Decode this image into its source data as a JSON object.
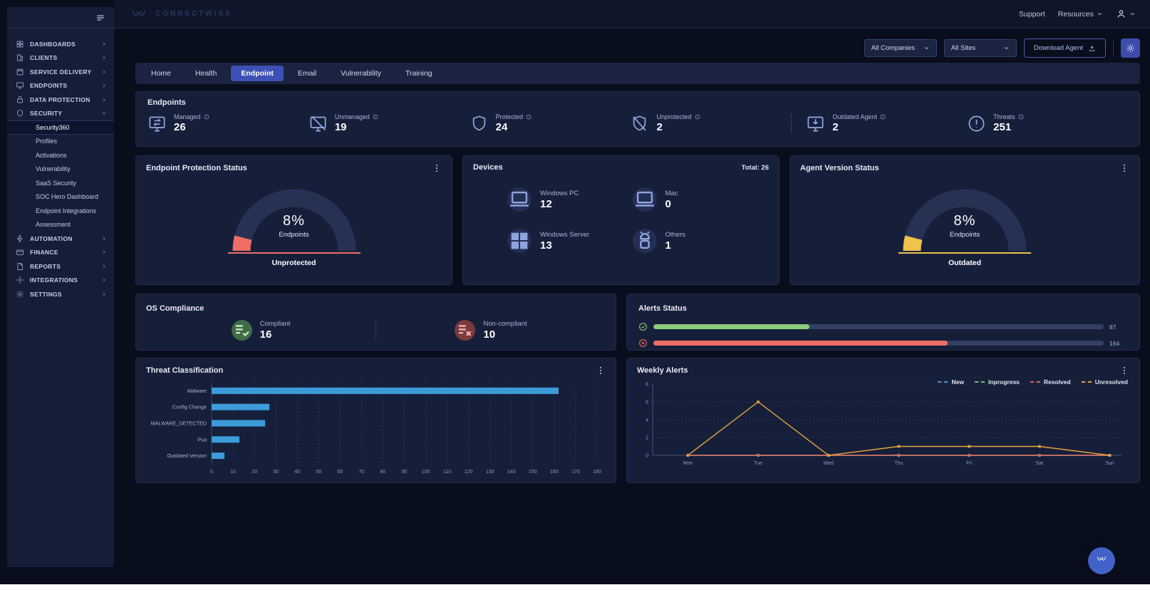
{
  "header": {
    "brand": "CONNECTWISE",
    "support_label": "Support",
    "resources_label": "Resources"
  },
  "filters": {
    "companies_label": "All Companies",
    "sites_label": "All Sites",
    "download_agent_label": "Download Agent"
  },
  "tabs": {
    "active": "Endpoint",
    "items": [
      "Home",
      "Health",
      "Endpoint",
      "Email",
      "Vulnerability",
      "Training"
    ]
  },
  "sidebar": {
    "items": [
      {
        "label": "DASHBOARDS",
        "icon": "dashboards-icon",
        "chevron": "right"
      },
      {
        "label": "CLIENTS",
        "icon": "clients-icon",
        "chevron": "right"
      },
      {
        "label": "SERVICE DELIVERY",
        "icon": "service-delivery-icon",
        "chevron": "right"
      },
      {
        "label": "ENDPOINTS",
        "icon": "endpoints-icon",
        "chevron": "right"
      },
      {
        "label": "DATA PROTECTION",
        "icon": "data-protection-icon",
        "chevron": "right"
      },
      {
        "label": "SECURITY",
        "icon": "security-icon",
        "chevron": "down",
        "expanded": true,
        "children": [
          {
            "label": "Security360",
            "active": true
          },
          {
            "label": "Profiles"
          },
          {
            "label": "Activations"
          },
          {
            "label": "Vulnerability"
          },
          {
            "label": "SaaS Security"
          },
          {
            "label": "SOC Hero Dashboard"
          },
          {
            "label": "Endpoint Integrations"
          },
          {
            "label": "Assessment"
          }
        ]
      },
      {
        "label": "AUTOMATION",
        "icon": "automation-icon",
        "chevron": "right"
      },
      {
        "label": "FINANCE",
        "icon": "finance-icon",
        "chevron": "right"
      },
      {
        "label": "REPORTS",
        "icon": "reports-icon",
        "chevron": "right"
      },
      {
        "label": "INTEGRATIONS",
        "icon": "integrations-icon",
        "chevron": "right"
      },
      {
        "label": "SETTINGS",
        "icon": "settings-icon",
        "chevron": "right"
      }
    ]
  },
  "endpoints_card": {
    "title": "Endpoints",
    "stats": [
      {
        "icon": "managed-endpoints-icon",
        "label": "Managed",
        "value": "26"
      },
      {
        "icon": "unmanaged-endpoints-icon",
        "label": "Unmanaged",
        "value": "19"
      },
      {
        "icon": "protected-shield-icon",
        "label": "Protected",
        "value": "24"
      },
      {
        "icon": "unprotected-shield-icon",
        "label": "Unprotected",
        "value": "2"
      },
      {
        "icon": "outdated-agent-icon",
        "label": "Outdated Agent",
        "value": "2",
        "divider_before": true
      },
      {
        "icon": "threats-icon",
        "label": "Threats",
        "value": "251"
      }
    ]
  },
  "cards": {
    "protection": {
      "title": "Endpoint Protection Status"
    },
    "devices": {
      "title": "Devices",
      "total_label": "Total: 26",
      "items": [
        {
          "icon": "windows-pc-icon",
          "label": "Windows PC",
          "value": "12"
        },
        {
          "icon": "mac-icon",
          "label": "Mac",
          "value": "0"
        },
        {
          "icon": "windows-server-icon",
          "label": "Windows Server",
          "value": "13"
        },
        {
          "icon": "others-icon",
          "label": "Others",
          "value": "1"
        }
      ]
    },
    "agent": {
      "title": "Agent Version Status"
    },
    "os_compliance": {
      "title": "OS Compliance",
      "items": [
        {
          "icon": "compliant-icon",
          "label": "Compliant",
          "value": "16",
          "badge_bg": "#3f6b48",
          "badge_fg": "#cdeabf"
        },
        {
          "icon": "non-compliant-icon",
          "label": "Non-compliant",
          "value": "10",
          "badge_bg": "#7a3b3d",
          "badge_fg": "#f2b8b6"
        }
      ]
    },
    "alerts_status": {
      "title": "Alerts Status",
      "max": 251,
      "bars": [
        {
          "icon": "resolved-check-icon",
          "color": "#8ccd7c",
          "value": 87
        },
        {
          "icon": "unresolved-cross-icon",
          "color": "#ef6e66",
          "value": 164
        }
      ]
    },
    "threat": {
      "title": "Threat Classification"
    },
    "weekly": {
      "title": "Weekly Alerts"
    }
  },
  "chart_data": [
    {
      "id": "endpoint-protection-gauge",
      "type": "gauge",
      "percent": 8,
      "percent_label": "8%",
      "center_label": "Endpoints",
      "status_label": "Unprotected",
      "color": "#ef6e66",
      "track_color": "#273153"
    },
    {
      "id": "agent-version-gauge",
      "type": "gauge",
      "percent": 8,
      "percent_label": "8%",
      "center_label": "Endpoints",
      "status_label": "Outdated",
      "color": "#efc24b",
      "track_color": "#273153"
    },
    {
      "id": "threat-classification",
      "type": "bar",
      "orientation": "horizontal",
      "title": "Threat Classification",
      "categories": [
        "Malware",
        "Config Change",
        "MALWARE_DETECTED",
        "Pua",
        "Outdated Version"
      ],
      "values": [
        162,
        27,
        25,
        13,
        6
      ],
      "xlim": [
        0,
        180
      ],
      "x_ticks": [
        0,
        10,
        20,
        30,
        40,
        50,
        60,
        70,
        80,
        90,
        100,
        110,
        120,
        130,
        140,
        150,
        160,
        170,
        180
      ],
      "bar_color": "#3d9bd9",
      "grid": "dashed-vertical",
      "legend": "none"
    },
    {
      "id": "weekly-alerts",
      "type": "line",
      "title": "Weekly Alerts",
      "x": [
        "Mon",
        "Tue",
        "Wed",
        "Thu",
        "Fri",
        "Sat",
        "Sun"
      ],
      "ylim": [
        0,
        8
      ],
      "y_ticks": [
        0,
        2,
        4,
        6,
        8
      ],
      "grid": "dashed-horizontal",
      "legend_position": "top-right",
      "series": [
        {
          "name": "New",
          "color": "#5b8dd9",
          "values": [
            0,
            0,
            0,
            0,
            0,
            0,
            0
          ]
        },
        {
          "name": "Inprogress",
          "color": "#6fbf73",
          "values": [
            0,
            0,
            0,
            0,
            0,
            0,
            0
          ]
        },
        {
          "name": "Resolved",
          "color": "#e0655e",
          "values": [
            0,
            0,
            0,
            0,
            0,
            0,
            0
          ]
        },
        {
          "name": "Unresolved",
          "color": "#e8a33d",
          "values": [
            0,
            6,
            0,
            1,
            1,
            1,
            0
          ]
        }
      ]
    }
  ],
  "fab": {
    "icon": "connectwise-logo-icon"
  }
}
